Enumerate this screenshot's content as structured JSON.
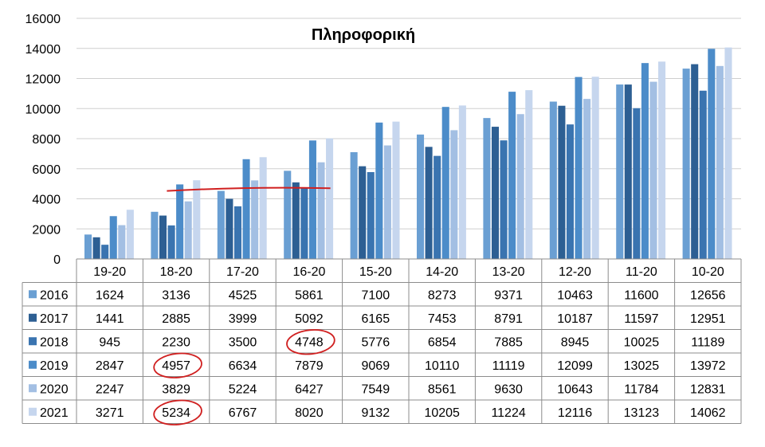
{
  "chart_data": {
    "type": "bar",
    "title": "Πληροφορική",
    "xlabel": "",
    "ylabel": "",
    "ylim": [
      0,
      16000
    ],
    "yticks": [
      0,
      2000,
      4000,
      6000,
      8000,
      10000,
      12000,
      14000,
      16000
    ],
    "grid": true,
    "legend": "data-table-left",
    "categories": [
      "19-20",
      "18-20",
      "17-20",
      "16-20",
      "15-20",
      "14-20",
      "13-20",
      "12-20",
      "11-20",
      "10-20"
    ],
    "series": [
      {
        "name": "2016",
        "color": "#6a9fd3",
        "values": [
          1624,
          3136,
          4525,
          5861,
          7100,
          8273,
          9371,
          10463,
          11600,
          12656
        ]
      },
      {
        "name": "2017",
        "color": "#2d5f93",
        "values": [
          1441,
          2885,
          3999,
          5092,
          6165,
          7453,
          8791,
          10187,
          11597,
          12951
        ]
      },
      {
        "name": "2018",
        "color": "#3a74b0",
        "values": [
          945,
          2230,
          3500,
          4748,
          5776,
          6854,
          7885,
          8945,
          10025,
          11189
        ]
      },
      {
        "name": "2019",
        "color": "#4c8cc9",
        "values": [
          2847,
          4957,
          6634,
          7879,
          9069,
          10110,
          11119,
          12099,
          13025,
          13972
        ]
      },
      {
        "name": "2020",
        "color": "#a3bfe3",
        "values": [
          2247,
          3829,
          5224,
          6427,
          7549,
          8561,
          9630,
          10643,
          11784,
          12831
        ]
      },
      {
        "name": "2021",
        "color": "#c6d6ee",
        "values": [
          3271,
          5234,
          6767,
          8020,
          9132,
          10205,
          11224,
          12116,
          13123,
          14062
        ]
      }
    ],
    "annotations": [
      {
        "type": "line",
        "color": "#d02020",
        "from": {
          "category": "18-20",
          "value": 4520
        },
        "to": {
          "category": "16-20",
          "value": 4700
        }
      },
      {
        "type": "circle",
        "color": "#d02020",
        "series": "2018",
        "category": "16-20"
      },
      {
        "type": "circle",
        "color": "#d02020",
        "series": "2019",
        "category": "18-20"
      },
      {
        "type": "circle",
        "color": "#d02020",
        "series": "2021",
        "category": "18-20"
      }
    ]
  }
}
